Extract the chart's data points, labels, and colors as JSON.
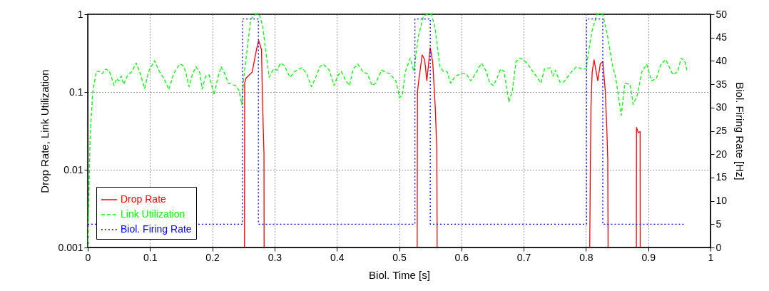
{
  "chart_data": {
    "type": "line",
    "xlabel": "Biol. Time [s]",
    "ylabel": "Drop Rate, Link Utilization",
    "y2label": "Biol. Firing Rate [Hz]",
    "xlim": [
      0,
      1
    ],
    "xticks": [
      0,
      0.1,
      0.2,
      0.3,
      0.4,
      0.5,
      0.6,
      0.7,
      0.8,
      0.9,
      1
    ],
    "ylim": [
      0.001,
      1
    ],
    "yticks": [
      0.001,
      0.01,
      0.1,
      1
    ],
    "log": true,
    "y2lim": [
      0,
      50
    ],
    "y2ticks": [
      0,
      5,
      10,
      15,
      20,
      25,
      30,
      35,
      40,
      45,
      50
    ],
    "grid": true,
    "legend": "bottom left",
    "series": [
      {
        "name": "Drop Rate",
        "color": "#ff0000",
        "line_style": "solid",
        "x": [
          0.2517,
          0.252,
          0.254,
          0.264,
          0.2715,
          0.2745,
          0.279,
          0.281,
          0.283,
          0.2832,
          0.4,
          0.529,
          0.5295,
          0.531,
          0.537,
          0.541,
          0.5445,
          0.55,
          0.554,
          0.558,
          0.5605,
          0.561,
          0.7,
          0.806,
          0.808,
          0.81,
          0.813,
          0.819,
          0.823,
          0.827,
          0.831,
          0.8335,
          0.835,
          0.8355,
          0.86,
          0.881,
          0.8812,
          0.884,
          0.887,
          0.8872
        ],
        "values": [
          0.001,
          0.13,
          0.15,
          0.18,
          0.37,
          0.46,
          0.35,
          0.06,
          0.016,
          0.001,
          null,
          0.001,
          0.1,
          0.13,
          0.3,
          0.26,
          0.14,
          0.37,
          0.24,
          0.064,
          0.019,
          0.001,
          null,
          0.001,
          0.064,
          0.18,
          0.26,
          0.14,
          0.23,
          0.245,
          0.105,
          0.034,
          0.0137,
          0.001,
          null,
          0.001,
          0.035,
          0.03,
          0.031,
          0.001
        ]
      },
      {
        "name": "Link Utilization",
        "color": "#00ff00",
        "line_style": "dashed",
        "x": [
          0,
          0.004,
          0.008,
          0.0137,
          0.0195,
          0.0233,
          0.029,
          0.0348,
          0.0424,
          0.0462,
          0.05,
          0.0538,
          0.0577,
          0.0634,
          0.071,
          0.0779,
          0.0844,
          0.0913,
          0.0978,
          0.1073,
          0.115,
          0.1226,
          0.1302,
          0.1379,
          0.1474,
          0.1531,
          0.157,
          0.1627,
          0.1684,
          0.1741,
          0.1798,
          0.1837,
          0.1894,
          0.1951,
          0.2028,
          0.2085,
          0.2142,
          0.22,
          0.2257,
          0.2314,
          0.2371,
          0.2429,
          0.2474,
          0.2505,
          0.2562,
          0.2619,
          0.2696,
          0.2753,
          0.281,
          0.2867,
          0.2913,
          0.2982,
          0.3039,
          0.3097,
          0.3154,
          0.3249,
          0.3326,
          0.344,
          0.3517,
          0.3593,
          0.3669,
          0.3727,
          0.3784,
          0.3879,
          0.3956,
          0.4013,
          0.407,
          0.4147,
          0.4204,
          0.4262,
          0.4338,
          0.4414,
          0.449,
          0.4567,
          0.4624,
          0.4719,
          0.4796,
          0.4853,
          0.4948,
          0.5006,
          0.5052,
          0.5101,
          0.5178,
          0.5235,
          0.5311,
          0.5388,
          0.5445,
          0.5521,
          0.5578,
          0.5655,
          0.5712,
          0.5769,
          0.5826,
          0.5903,
          0.5998,
          0.6075,
          0.6151,
          0.6227,
          0.6323,
          0.6399,
          0.6456,
          0.6514,
          0.6571,
          0.6628,
          0.6686,
          0.6762,
          0.6819,
          0.6877,
          0.6934,
          0.6991,
          0.7068,
          0.7144,
          0.7201,
          0.7277,
          0.7335,
          0.7431,
          0.7469,
          0.7507,
          0.7583,
          0.764,
          0.7717,
          0.7774,
          0.7851,
          0.7927,
          0.8003,
          0.8041,
          0.8098,
          0.8175,
          0.827,
          0.8346,
          0.8423,
          0.848,
          0.8568,
          0.8625,
          0.8709,
          0.8759,
          0.8824,
          0.89,
          0.8976,
          0.9053,
          0.9129,
          0.9206,
          0.9282,
          0.9397,
          0.9473,
          0.953,
          0.9588,
          0.9626
        ],
        "values": [
          0.001,
          0.03,
          0.098,
          0.184,
          0.184,
          0.172,
          0.198,
          0.184,
          0.121,
          0.149,
          0.139,
          0.16,
          0.125,
          0.16,
          0.184,
          0.236,
          0.172,
          0.111,
          0.184,
          0.253,
          0.184,
          0.149,
          0.107,
          0.172,
          0.228,
          0.22,
          0.184,
          0.117,
          0.172,
          0.21,
          0.178,
          0.109,
          0.16,
          0.166,
          0.091,
          0.149,
          0.212,
          0.172,
          0.13,
          0.125,
          0.121,
          0.105,
          0.069,
          0.149,
          0.373,
          0.87,
          1,
          1,
          0.7,
          0.3,
          0.155,
          0.198,
          0.191,
          0.236,
          0.22,
          0.155,
          0.184,
          0.205,
          0.172,
          0.117,
          0.16,
          0.212,
          0.228,
          0.191,
          0.121,
          0.16,
          0.184,
          0.139,
          0.121,
          0.198,
          0.228,
          0.184,
          0.172,
          0.121,
          0.13,
          0.191,
          0.178,
          0.172,
          0.139,
          0.085,
          0.091,
          0.184,
          0.272,
          0.184,
          0.53,
          0.93,
          1,
          1,
          0.66,
          0.212,
          0.184,
          0.184,
          0.13,
          0.16,
          0.172,
          0.172,
          0.139,
          0.172,
          0.236,
          0.184,
          0.13,
          0.121,
          0.149,
          0.198,
          0.184,
          0.074,
          0.105,
          0.245,
          0.272,
          0.262,
          0.228,
          0.184,
          0.16,
          0.13,
          0.198,
          0.205,
          0.16,
          0.191,
          0.134,
          0.134,
          0.16,
          0.184,
          0.212,
          0.198,
          0.198,
          0.324,
          0.61,
          1,
          1,
          0.53,
          0.228,
          0.149,
          0.05,
          0.13,
          0.125,
          0.069,
          0.091,
          0.184,
          0.228,
          0.139,
          0.149,
          0.228,
          0.262,
          0.166,
          0.184,
          0.272,
          0.245,
          0.184
        ]
      },
      {
        "name": "Biol. Firing Rate",
        "color": "#0000ff",
        "line_style": "dotted",
        "axis": "y2",
        "x": [
          0,
          0.2486,
          0.2486,
          0.274,
          0.274,
          0.5254,
          0.5254,
          0.55,
          0.55,
          0.801,
          0.801,
          0.827,
          0.827,
          0.959
        ],
        "values": [
          5,
          5,
          49,
          49,
          5,
          5,
          49,
          49,
          5,
          5,
          49,
          49,
          5,
          5
        ]
      }
    ]
  }
}
